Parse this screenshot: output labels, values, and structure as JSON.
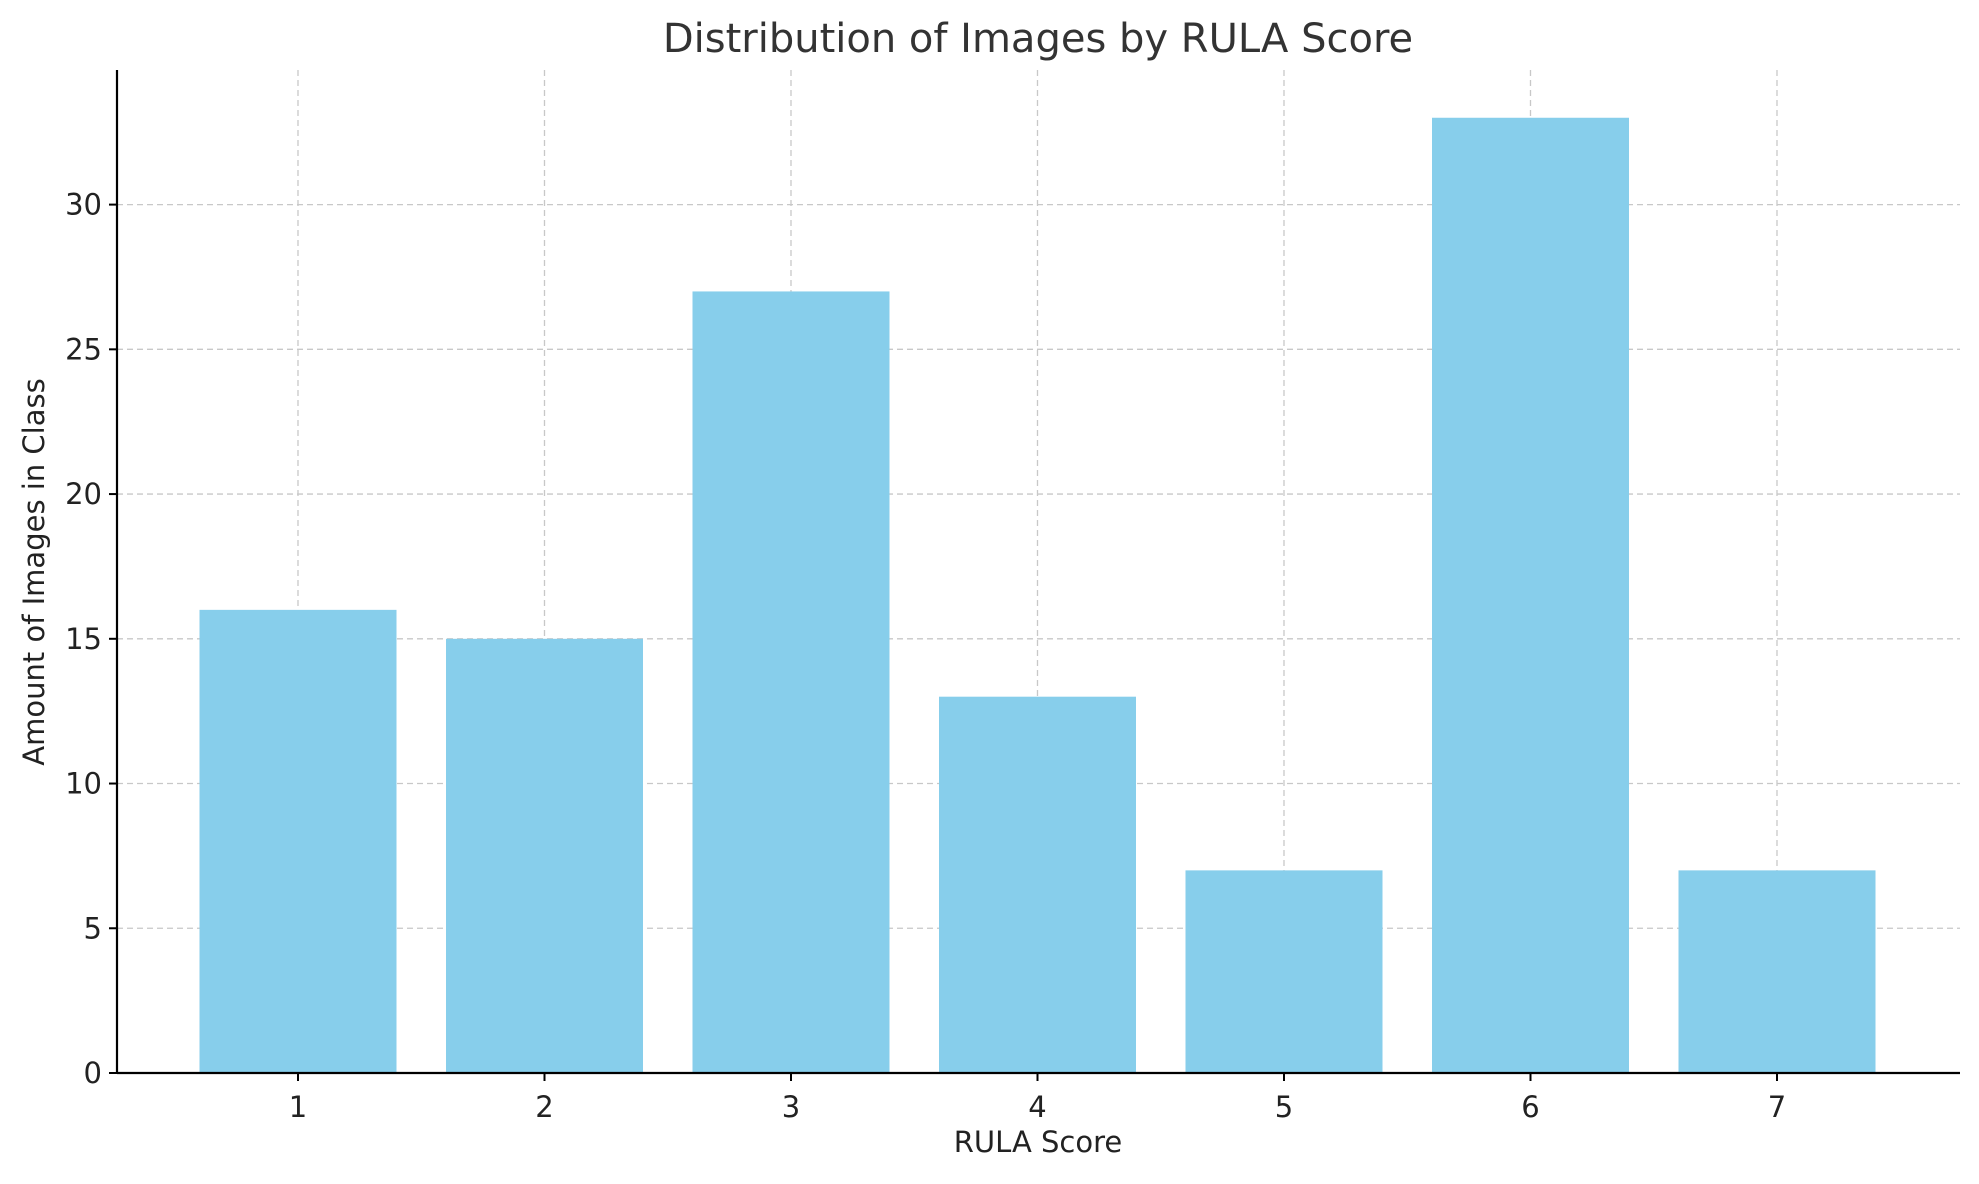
{
  "chart_data": {
    "type": "bar",
    "title": "Distribution of Images by RULA Score",
    "xlabel": "RULA Score",
    "ylabel": "Amount of Images in Class",
    "categories": [
      "1",
      "2",
      "3",
      "4",
      "5",
      "6",
      "7"
    ],
    "values": [
      16,
      15,
      27,
      13,
      7,
      33,
      7
    ],
    "ylim": [
      0,
      34.65
    ],
    "yticks": [
      0,
      5,
      10,
      15,
      20,
      25,
      30
    ],
    "grid": true,
    "bar_color": "#87CEEB"
  }
}
